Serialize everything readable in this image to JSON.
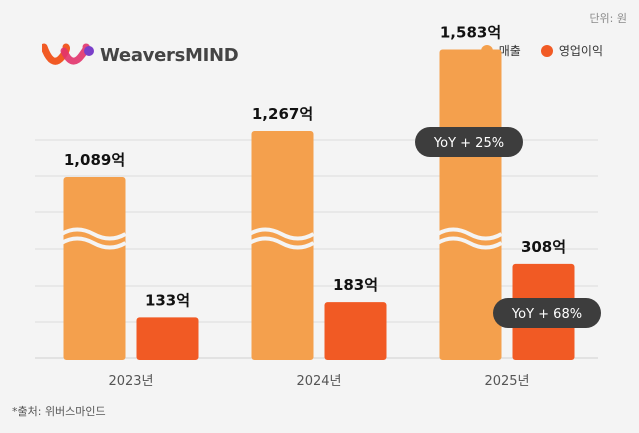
{
  "unit_note": "단위: 원",
  "logo": {
    "text": "WeaversMIND"
  },
  "legend": [
    {
      "label": "매출",
      "color": "#F4A04D"
    },
    {
      "label": "영업이익",
      "color": "#F15A24"
    }
  ],
  "source_note": "*출처: 위버스마인드",
  "colors": {
    "revenue": "#F4A04D",
    "operating_profit": "#F15A24",
    "yoy_bg": "#3d3d3d"
  },
  "chart_data": {
    "type": "bar",
    "categories": [
      "2023년",
      "2024년",
      "2025년"
    ],
    "series": [
      {
        "name": "매출",
        "values": [
          1089,
          1267,
          1583
        ],
        "labels": [
          "1,089억",
          "1,267억",
          "1,583억"
        ],
        "axis_break": true
      },
      {
        "name": "영업이익",
        "values": [
          133,
          183,
          308
        ],
        "labels": [
          "133억",
          "183억",
          "308억"
        ]
      }
    ],
    "annotations": [
      {
        "series": "매출",
        "category": "2025년",
        "text": "YoY + 25%"
      },
      {
        "series": "영업이익",
        "category": "2025년",
        "text": "YoY + 68%"
      }
    ],
    "grid": true,
    "legend_position": "top-right"
  }
}
